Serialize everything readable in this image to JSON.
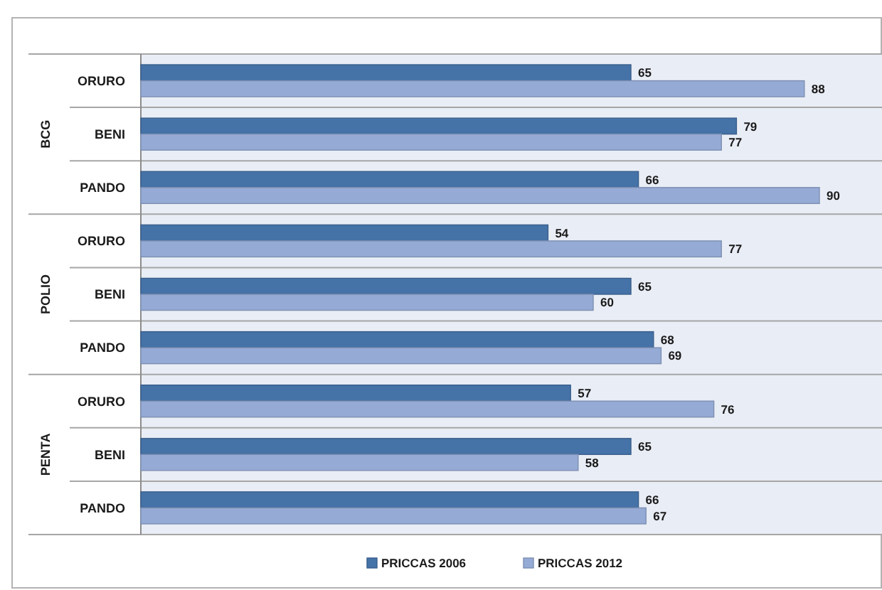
{
  "chart_data": {
    "type": "bar",
    "orientation": "horizontal",
    "categories": [
      "ORURO",
      "BENI",
      "PANDO",
      "ORURO",
      "BENI",
      "PANDO",
      "ORURO",
      "BENI",
      "PANDO"
    ],
    "series": [
      {
        "name": "PRICCAS 2006",
        "color": "#4572a7",
        "values": [
          65,
          79,
          66,
          54,
          65,
          68,
          57,
          65,
          66
        ]
      },
      {
        "name": "PRICCAS 2012",
        "color": "#95abd5",
        "values": [
          88,
          77,
          90,
          77,
          60,
          69,
          76,
          58,
          67
        ]
      }
    ],
    "annotations": [
      "BCG",
      "POLIO",
      "PENTA"
    ],
    "tick_labels": "y",
    "data_labels": true,
    "legend": "bottom"
  }
}
